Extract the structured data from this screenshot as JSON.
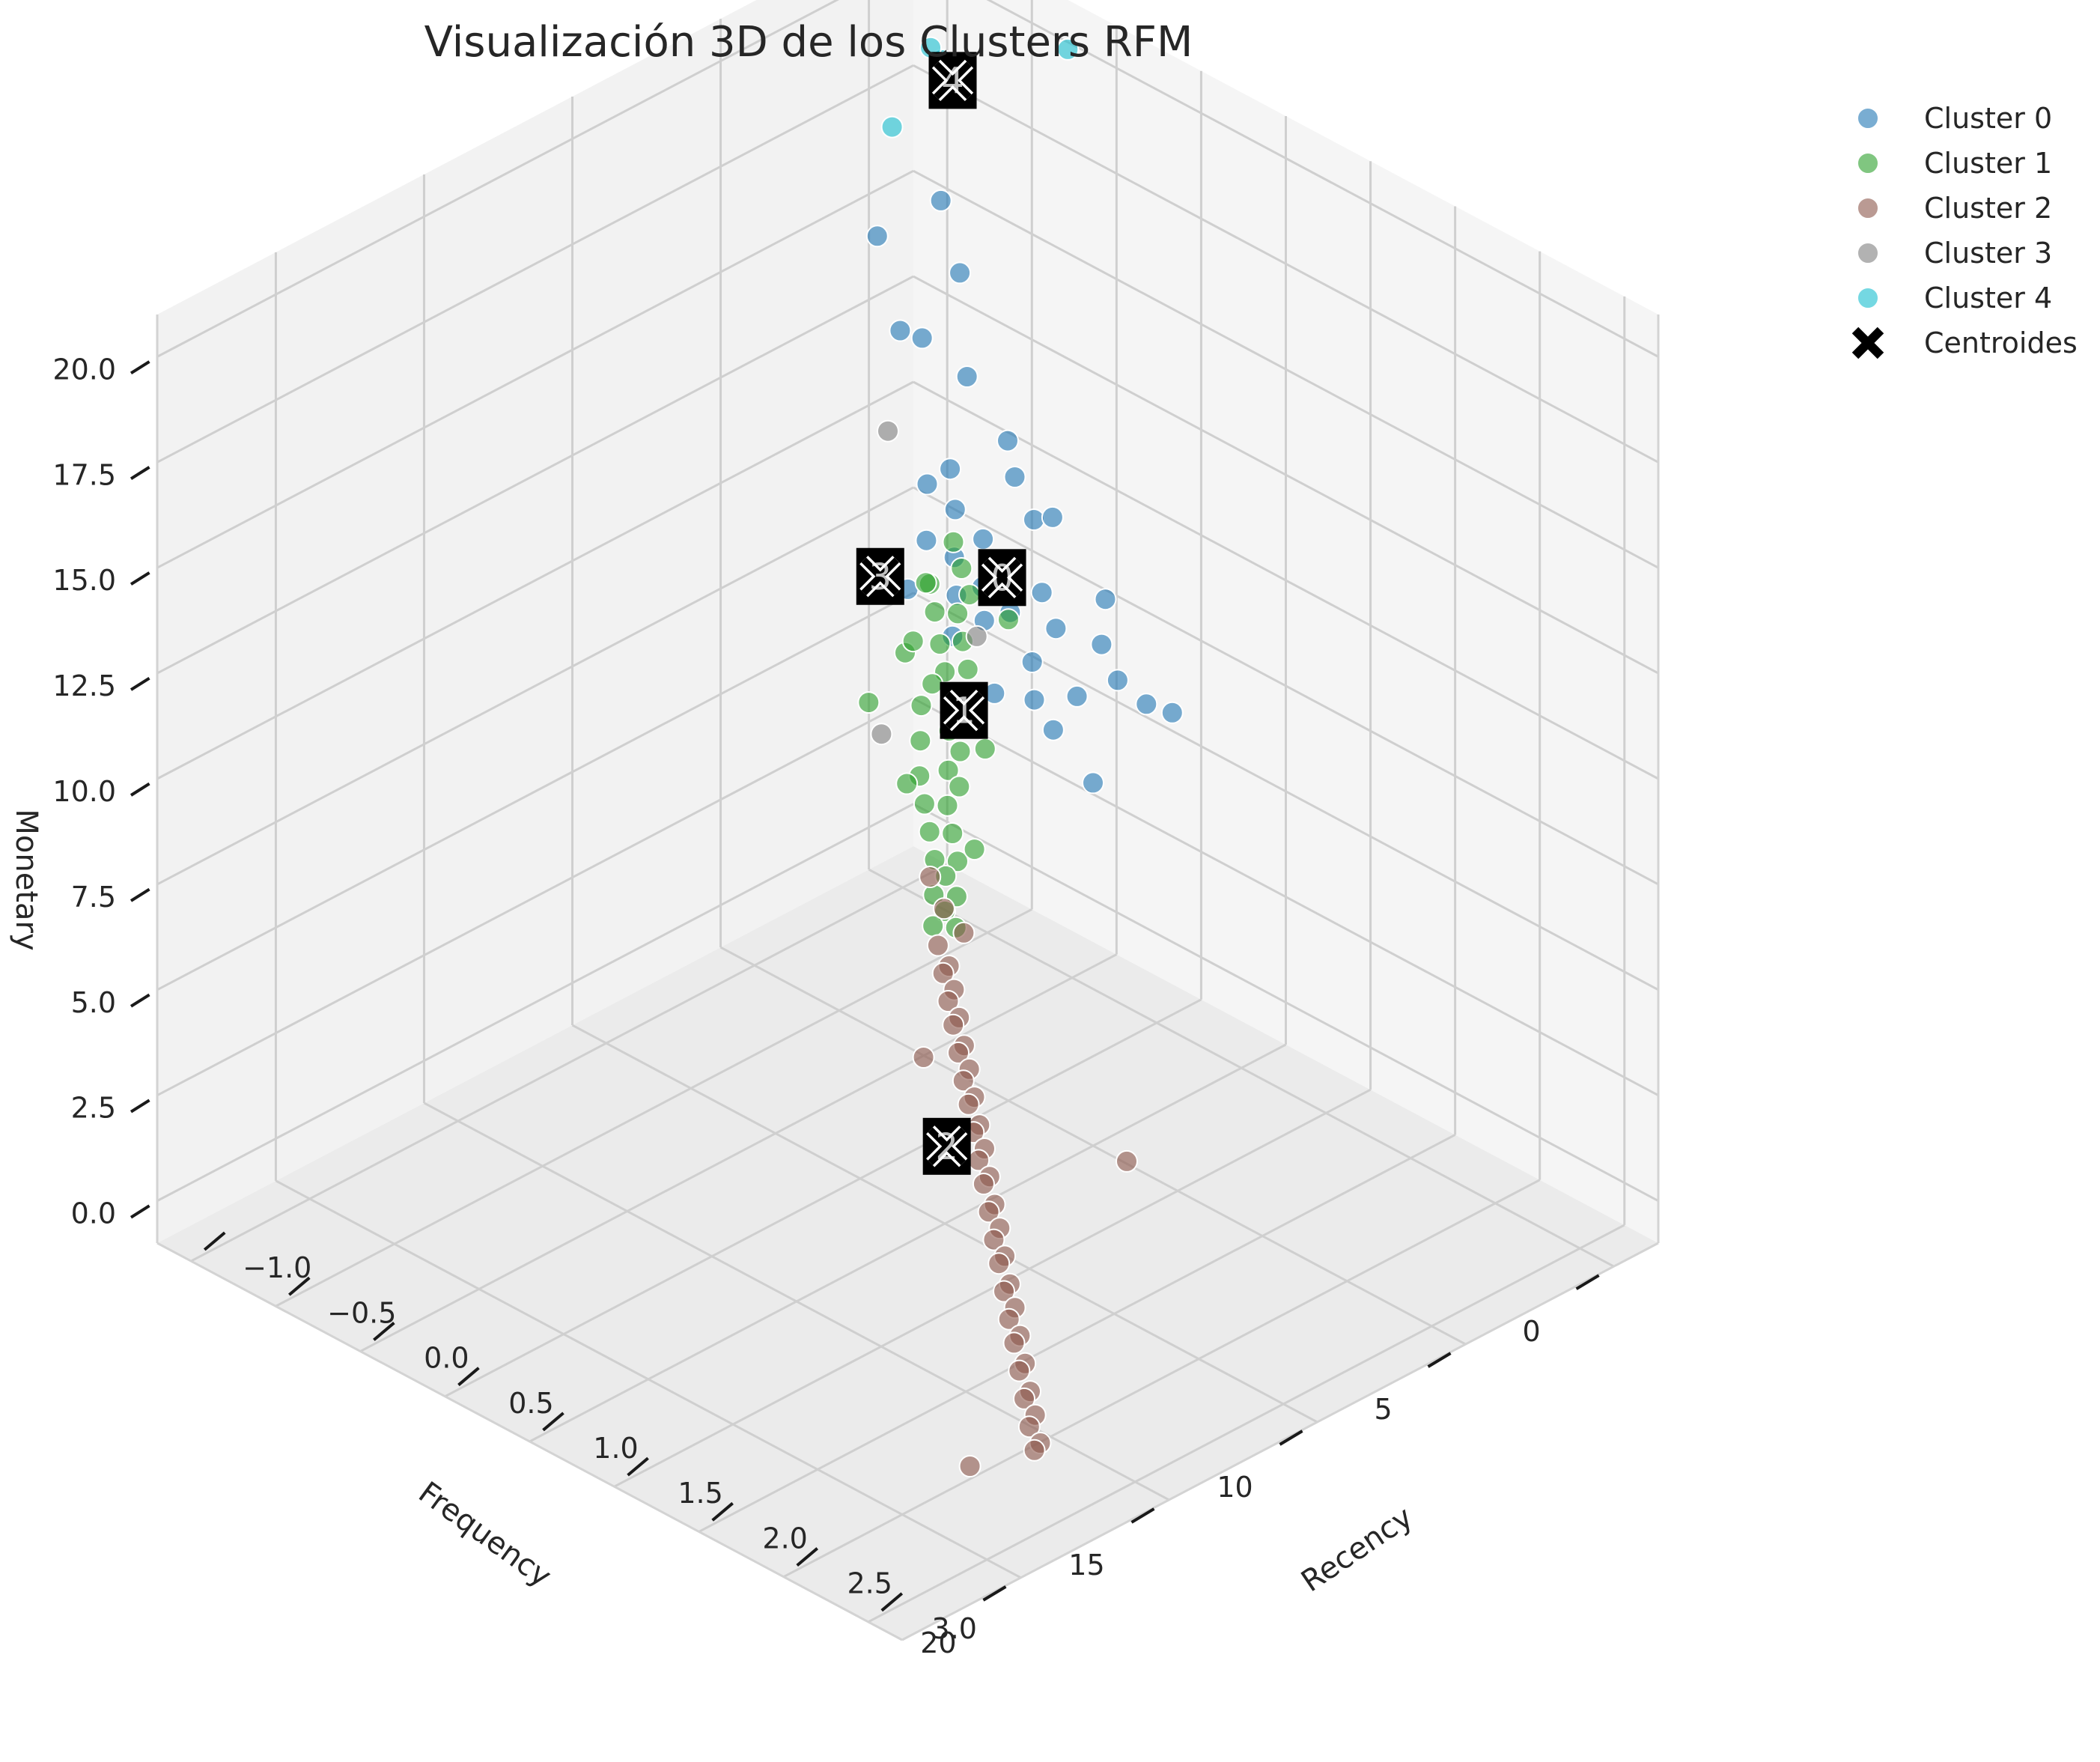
{
  "chart_data": {
    "type": "scatter",
    "title": "Visualización 3D de los Clusters RFM",
    "xlabel": "Recency",
    "ylabel": "Frequency",
    "zlabel": "Monetary",
    "xlim": [
      -1.2,
      3.2
    ],
    "ylim": [
      -1.5,
      24
    ],
    "zlim": [
      -1,
      21
    ],
    "x_ticks": [
      -1.0,
      -0.5,
      0.0,
      0.5,
      1.0,
      1.5,
      2.0,
      2.5,
      3.0
    ],
    "x_tick_labels": [
      "−1.0",
      "−0.5",
      "0.0",
      "0.5",
      "1.0",
      "1.5",
      "2.0",
      "2.5",
      "3.0"
    ],
    "y_ticks": [
      0,
      5,
      10,
      15,
      20
    ],
    "y_tick_labels": [
      "0",
      "5",
      "10",
      "15",
      "20"
    ],
    "z_ticks": [
      0,
      2.5,
      5,
      7.5,
      10,
      12.5,
      15,
      17.5,
      20
    ],
    "z_tick_labels": [
      "0.0",
      "2.5",
      "5.0",
      "7.5",
      "10.0",
      "12.5",
      "15.0",
      "17.5",
      "20.0"
    ],
    "grid": true,
    "legend_position": "top-right",
    "series": [
      {
        "name": "Cluster 0",
        "color": "#1f77b4",
        "points": [
          [
            -0.6,
            1.0,
            16.5
          ],
          [
            -0.4,
            1.5,
            15.4
          ],
          [
            -0.8,
            2.0,
            15.6
          ],
          [
            -0.7,
            1.8,
            13.5
          ],
          [
            -0.5,
            2.2,
            13.9
          ],
          [
            -0.2,
            2.4,
            13.7
          ],
          [
            -0.1,
            1.6,
            12.1
          ],
          [
            0.1,
            2.5,
            12.0
          ],
          [
            0.3,
            3.0,
            11.6
          ],
          [
            0.2,
            1.8,
            11.0
          ],
          [
            0.6,
            2.3,
            10.1
          ],
          [
            -0.3,
            2.4,
            11.3
          ],
          [
            -0.4,
            2.6,
            10.8
          ],
          [
            -0.2,
            2.8,
            10.7
          ],
          [
            0.0,
            3.0,
            10.5
          ],
          [
            0.2,
            3.2,
            10.4
          ],
          [
            0.4,
            3.3,
            10.2
          ],
          [
            -0.1,
            3.4,
            10.0
          ],
          [
            0.1,
            3.6,
            9.8
          ],
          [
            0.3,
            3.8,
            9.7
          ],
          [
            0.5,
            3.4,
            9.6
          ],
          [
            0.7,
            3.0,
            9.5
          ],
          [
            -0.3,
            3.2,
            9.9
          ],
          [
            0.0,
            3.9,
            9.5
          ],
          [
            0.2,
            4.1,
            9.4
          ],
          [
            0.5,
            4.2,
            9.1
          ],
          [
            0.8,
            4.4,
            9.0
          ],
          [
            0.9,
            3.6,
            9.3
          ],
          [
            1.0,
            3.2,
            8.8
          ],
          [
            1.1,
            2.9,
            8.7
          ],
          [
            0.1,
            4.6,
            9.0
          ],
          [
            0.4,
            4.9,
            8.4
          ],
          [
            0.6,
            4.7,
            8.6
          ],
          [
            0.8,
            5.2,
            8.5
          ],
          [
            1.0,
            5.0,
            7.6
          ],
          [
            -0.2,
            4.4,
            9.4
          ]
        ]
      },
      {
        "name": "Cluster 1",
        "color": "#2ca02c",
        "points": [
          [
            0.0,
            4.0,
            10.8
          ],
          [
            0.1,
            4.3,
            10.5
          ],
          [
            0.2,
            4.6,
            10.2
          ],
          [
            0.0,
            4.8,
            10.1
          ],
          [
            0.2,
            5.0,
            9.9
          ],
          [
            0.1,
            5.2,
            9.8
          ],
          [
            0.3,
            5.4,
            9.6
          ],
          [
            0.2,
            5.6,
            9.4
          ],
          [
            0.4,
            5.8,
            9.3
          ],
          [
            0.3,
            6.0,
            9.1
          ],
          [
            0.1,
            6.2,
            9.2
          ],
          [
            0.4,
            6.4,
            8.9
          ],
          [
            0.5,
            6.6,
            8.8
          ],
          [
            0.3,
            6.8,
            8.6
          ],
          [
            0.5,
            7.0,
            8.5
          ],
          [
            0.6,
            7.2,
            8.3
          ],
          [
            0.4,
            7.4,
            8.2
          ],
          [
            0.6,
            7.6,
            8.0
          ],
          [
            0.7,
            7.8,
            7.9
          ],
          [
            0.5,
            8.0,
            7.8
          ],
          [
            0.7,
            8.2,
            7.6
          ],
          [
            0.6,
            8.4,
            7.5
          ],
          [
            0.8,
            8.6,
            7.3
          ],
          [
            0.7,
            8.8,
            7.2
          ],
          [
            0.9,
            9.0,
            7.0
          ],
          [
            0.8,
            9.2,
            6.9
          ],
          [
            0.9,
            9.4,
            6.8
          ],
          [
            1.0,
            9.6,
            6.6
          ],
          [
            0.9,
            9.8,
            6.5
          ],
          [
            1.0,
            10.0,
            6.4
          ],
          [
            1.1,
            10.2,
            6.3
          ],
          [
            1.0,
            10.4,
            6.2
          ],
          [
            0.1,
            5.5,
            10.6
          ],
          [
            0.4,
            7.0,
            9.4
          ],
          [
            0.2,
            6.5,
            9.8
          ],
          [
            0.8,
            7.5,
            8.9
          ],
          [
            0.6,
            9.0,
            8.2
          ],
          [
            0.2,
            8.0,
            8.9
          ],
          [
            0.5,
            5.0,
            10.4
          ],
          [
            1.0,
            9.0,
            7.5
          ]
        ]
      },
      {
        "name": "Cluster 2",
        "color": "#8c564b",
        "points": [
          [
            1.1,
            10.6,
            6.9
          ],
          [
            1.1,
            10.8,
            6.1
          ],
          [
            1.2,
            11.0,
            5.9
          ],
          [
            1.2,
            11.2,
            5.8
          ],
          [
            1.3,
            11.4,
            5.7
          ],
          [
            1.3,
            11.6,
            5.5
          ],
          [
            1.4,
            11.8,
            5.4
          ],
          [
            1.4,
            12.0,
            5.3
          ],
          [
            1.5,
            12.2,
            5.1
          ],
          [
            1.5,
            12.4,
            5.0
          ],
          [
            1.6,
            12.6,
            4.9
          ],
          [
            1.6,
            12.8,
            4.7
          ],
          [
            1.7,
            13.0,
            4.6
          ],
          [
            1.7,
            13.2,
            4.5
          ],
          [
            1.8,
            13.4,
            4.3
          ],
          [
            1.8,
            13.6,
            4.2
          ],
          [
            1.9,
            13.8,
            4.1
          ],
          [
            1.9,
            14.0,
            3.9
          ],
          [
            2.0,
            14.2,
            3.8
          ],
          [
            2.0,
            14.4,
            3.7
          ],
          [
            2.1,
            14.6,
            3.5
          ],
          [
            2.1,
            14.8,
            3.4
          ],
          [
            2.2,
            15.0,
            3.3
          ],
          [
            2.2,
            15.2,
            3.1
          ],
          [
            2.3,
            15.4,
            3.0
          ],
          [
            2.3,
            15.6,
            2.9
          ],
          [
            2.4,
            15.8,
            2.7
          ],
          [
            2.4,
            16.0,
            2.6
          ],
          [
            2.5,
            16.2,
            2.5
          ],
          [
            2.5,
            16.4,
            2.3
          ],
          [
            2.6,
            16.6,
            2.2
          ],
          [
            2.6,
            16.8,
            2.1
          ],
          [
            2.7,
            17.0,
            1.9
          ],
          [
            2.7,
            17.2,
            1.8
          ],
          [
            2.8,
            17.4,
            1.6
          ],
          [
            2.8,
            17.6,
            1.5
          ],
          [
            2.9,
            17.8,
            1.4
          ],
          [
            2.9,
            18.0,
            1.2
          ],
          [
            3.0,
            18.2,
            1.1
          ],
          [
            3.0,
            18.4,
            1.0
          ],
          [
            2.6,
            13.0,
            5.0
          ],
          [
            1.0,
            10.5,
            7.4
          ],
          [
            1.4,
            13.0,
            4.9
          ],
          [
            1.2,
            10.5,
            6.5
          ],
          [
            2.9,
            20.0,
            1.0
          ]
        ]
      },
      {
        "name": "Cluster 3",
        "color": "#7f7f7f",
        "points": [
          [
            -1.0,
            0.5,
            10.0
          ],
          [
            -0.3,
            1.5,
            7.0
          ],
          [
            -0.6,
            3.0,
            4.6
          ]
        ]
      },
      {
        "name": "Cluster 4",
        "color": "#17becf",
        "points": [
          [
            -0.2,
            -1.0,
            20.2
          ],
          [
            -0.7,
            0.4,
            19.4
          ],
          [
            -0.8,
            0.2,
            19.4
          ],
          [
            -0.8,
            1.5,
            18.0
          ]
        ]
      }
    ],
    "centroids": {
      "name": "Centroides",
      "color": "#000000",
      "points": [
        {
          "label": "0",
          "x": 0.2,
          "y": 3.5,
          "z": 10.2
        },
        {
          "label": "1",
          "x": 0.5,
          "y": 6.5,
          "z": 8.8
        },
        {
          "label": "2",
          "x": 1.8,
          "y": 14.5,
          "z": 4.2
        },
        {
          "label": "3",
          "x": -0.8,
          "y": 1.9,
          "z": 7.5
        },
        {
          "label": "4",
          "x": -0.6,
          "y": 0.6,
          "z": 19.2
        }
      ]
    }
  }
}
